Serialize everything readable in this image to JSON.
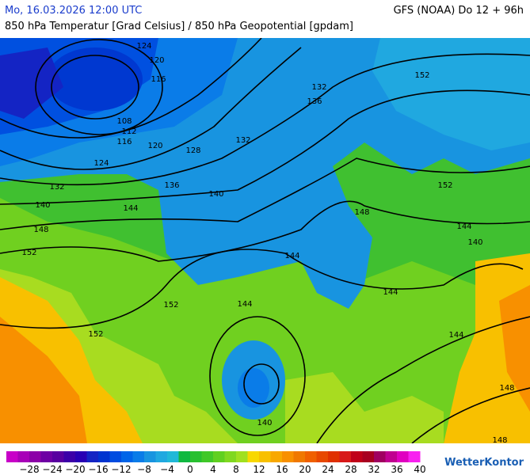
{
  "header": {
    "date": "Mo, 16.03.2026 12:00 UTC",
    "model": "GFS (NOAA) Do 12 + 96h",
    "subtitle": "850 hPa Temperatur [Grad Celsius] / 850 hPa Geopotential [gpdam]"
  },
  "contour_labels": [
    "124",
    "120",
    "116",
    "108",
    "112",
    "116",
    "120",
    "128",
    "124",
    "132",
    "136",
    "140",
    "140",
    "144",
    "148",
    "152",
    "152",
    "132",
    "136",
    "132",
    "152",
    "148",
    "144",
    "144",
    "140",
    "144",
    "152",
    "152",
    "144",
    "144",
    "140",
    "148",
    "148"
  ],
  "colorbar": {
    "colors": [
      "#c800c8",
      "#a800b8",
      "#8c00a8",
      "#6e00a4",
      "#5800a0",
      "#3c00a8",
      "#2800b4",
      "#1424c4",
      "#0034d0",
      "#004ce0",
      "#0064e8",
      "#0a7ce8",
      "#1894e0",
      "#20a8e0",
      "#20b8d8",
      "#10b840",
      "#28c030",
      "#40c828",
      "#60d020",
      "#80d820",
      "#a0e020",
      "#f8d800",
      "#f8c000",
      "#f8a800",
      "#f89000",
      "#f07800",
      "#f06000",
      "#e84800",
      "#e03000",
      "#d81818",
      "#c00018",
      "#a80020",
      "#a00060",
      "#c00090",
      "#e000c0",
      "#f820f0"
    ],
    "labels": [
      "−28",
      "−24",
      "−20",
      "−16",
      "−12",
      "−8",
      "−4",
      "0",
      "4",
      "8",
      "12",
      "16",
      "20",
      "24",
      "28",
      "32",
      "36",
      "40"
    ]
  },
  "logo": "WetterKontor"
}
